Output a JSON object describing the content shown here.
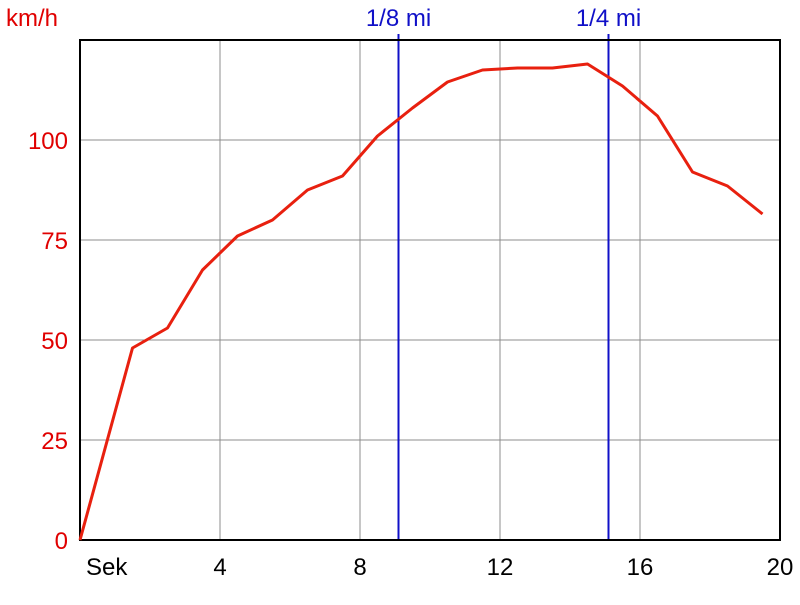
{
  "chart_data": {
    "type": "line",
    "title": "",
    "ylabel": "km/h",
    "xlabel": "Sek",
    "x_unit_label": "Sek",
    "xlim": [
      0,
      20
    ],
    "ylim": [
      0,
      125
    ],
    "x_ticks": [
      4,
      8,
      12,
      16,
      20
    ],
    "y_ticks": [
      0,
      25,
      50,
      75,
      100
    ],
    "grid": true,
    "series": [
      {
        "color": "#e8200f",
        "x": [
          0,
          1.5,
          2.5,
          3.5,
          4.5,
          5.5,
          6.5,
          7.5,
          8.5,
          9.5,
          10.5,
          11.5,
          12.5,
          13.5,
          14.5,
          15.5,
          16.5,
          17.5,
          18.5,
          19.5
        ],
        "y": [
          0,
          48,
          53,
          67.5,
          76,
          80,
          87.5,
          91,
          101,
          108,
          114.5,
          117.5,
          118,
          118,
          119,
          113.5,
          106,
          92,
          88.5,
          81.5
        ]
      }
    ],
    "markers": [
      {
        "label": "1/8 mi",
        "x": 9.1,
        "color": "#1010c8"
      },
      {
        "label": "1/4 mi",
        "x": 15.1,
        "color": "#1010c8"
      }
    ],
    "colors": {
      "axis_text": "#e00000",
      "x_text": "#000000",
      "grid": "#8c8c8c",
      "frame": "#000000"
    }
  }
}
